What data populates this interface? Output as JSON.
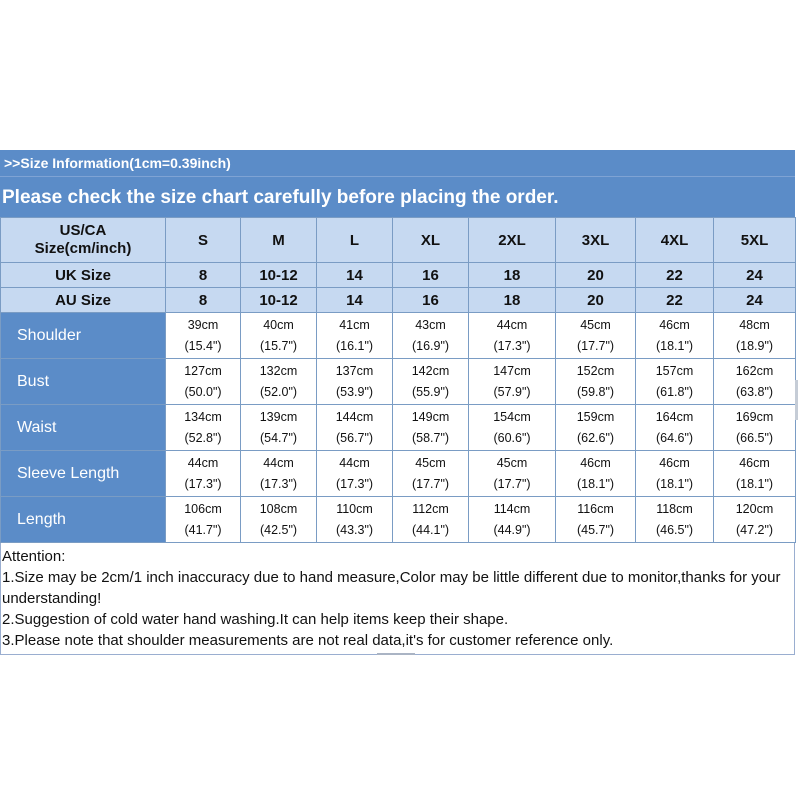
{
  "header": {
    "info": ">>Size Information(1cm=0.39inch)",
    "notice": "Please check the size chart carefully before placing the order."
  },
  "table": {
    "corner_line1": "US/CA",
    "corner_line2": "Size(cm/inch)",
    "sizes": [
      "S",
      "M",
      "L",
      "XL",
      "2XL",
      "3XL",
      "4XL",
      "5XL"
    ],
    "uk": {
      "label": "UK Size",
      "values": [
        "8",
        "10-12",
        "14",
        "16",
        "18",
        "20",
        "22",
        "24"
      ]
    },
    "au": {
      "label": "AU Size",
      "values": [
        "8",
        "10-12",
        "14",
        "16",
        "18",
        "20",
        "22",
        "24"
      ]
    },
    "measurements": [
      {
        "label": "Shoulder",
        "cm": [
          "39cm",
          "40cm",
          "41cm",
          "43cm",
          "44cm",
          "45cm",
          "46cm",
          "48cm"
        ],
        "inch": [
          "(15.4\")",
          "(15.7\")",
          "(16.1\")",
          "(16.9\")",
          "(17.3\")",
          "(17.7\")",
          "(18.1\")",
          "(18.9\")"
        ]
      },
      {
        "label": "Bust",
        "cm": [
          "127cm",
          "132cm",
          "137cm",
          "142cm",
          "147cm",
          "152cm",
          "157cm",
          "162cm"
        ],
        "inch": [
          "(50.0\")",
          "(52.0\")",
          "(53.9\")",
          "(55.9\")",
          "(57.9\")",
          "(59.8\")",
          "(61.8\")",
          "(63.8\")"
        ]
      },
      {
        "label": "Waist",
        "cm": [
          "134cm",
          "139cm",
          "144cm",
          "149cm",
          "154cm",
          "159cm",
          "164cm",
          "169cm"
        ],
        "inch": [
          "(52.8\")",
          "(54.7\")",
          "(56.7\")",
          "(58.7\")",
          "(60.6\")",
          "(62.6\")",
          "(64.6\")",
          "(66.5\")"
        ]
      },
      {
        "label": "Sleeve Length",
        "cm": [
          "44cm",
          "44cm",
          "44cm",
          "45cm",
          "45cm",
          "46cm",
          "46cm",
          "46cm"
        ],
        "inch": [
          "(17.3\")",
          "(17.3\")",
          "(17.3\")",
          "(17.7\")",
          "(17.7\")",
          "(18.1\")",
          "(18.1\")",
          "(18.1\")"
        ]
      },
      {
        "label": "Length",
        "cm": [
          "106cm",
          "108cm",
          "110cm",
          "112cm",
          "114cm",
          "116cm",
          "118cm",
          "120cm"
        ],
        "inch": [
          "(41.7\")",
          "(42.5\")",
          "(43.3\")",
          "(44.1\")",
          "(44.9\")",
          "(45.7\")",
          "(46.5\")",
          "(47.2\")"
        ]
      }
    ]
  },
  "notes": {
    "title": "Attention:",
    "items": [
      "1.Size may be 2cm/1 inch inaccuracy due to hand measure,Color may be little different due to monitor,thanks for your understanding!",
      "2.Suggestion of cold water hand washing.It can help items keep their shape.",
      "3.Please note that shoulder measurements are not real data,it's for customer reference only."
    ]
  },
  "colors": {
    "header_blue": "#5b8cc8",
    "light_blue": "#c6d9f1",
    "border": "#7a9cc4"
  }
}
